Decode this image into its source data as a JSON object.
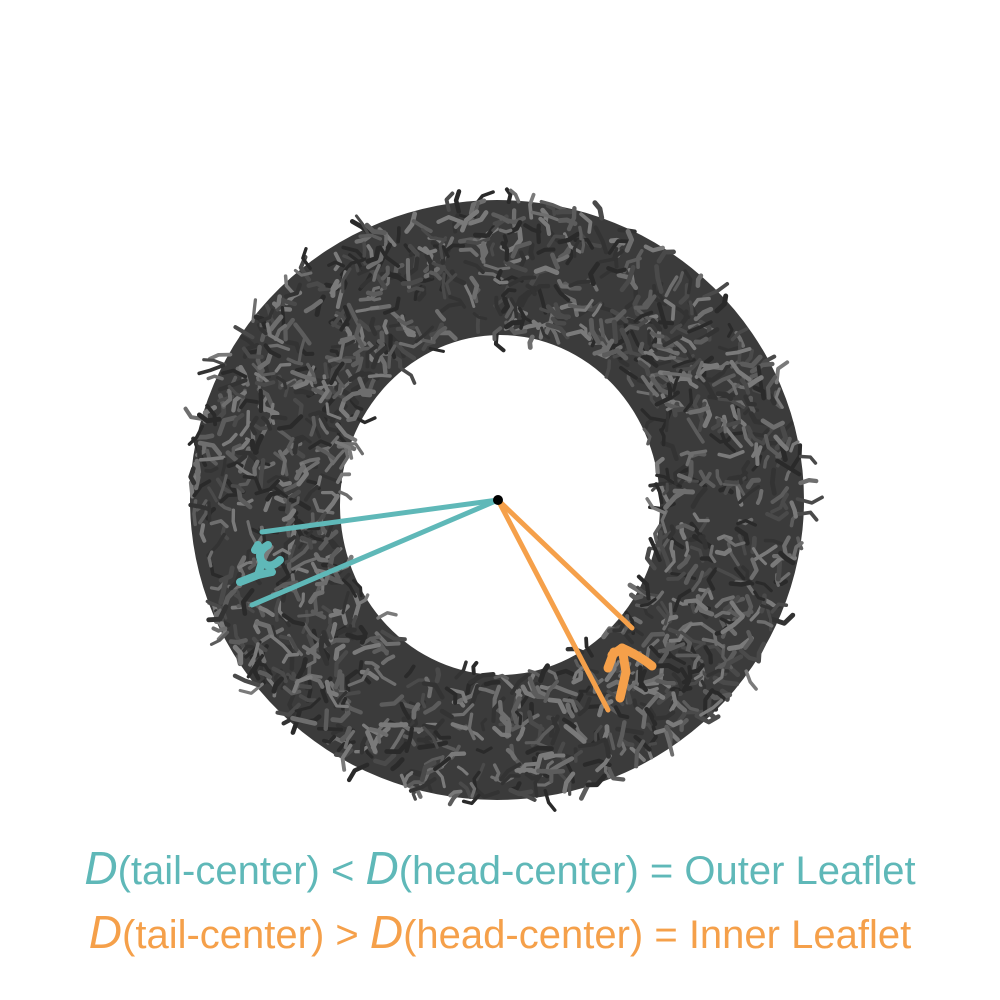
{
  "colors": {
    "outer": "#5fb8b8",
    "inner": "#f5a04a",
    "lipid_dark": "#3a3a3a",
    "lipid_light": "#6a6a6a",
    "center": "#000000",
    "background": "#ffffff"
  },
  "captions": {
    "outer": {
      "var1": "D",
      "part1": "(tail-center) < ",
      "var2": "D",
      "part2": "(head-center) = Outer Leaflet"
    },
    "inner": {
      "var1": "D",
      "part1": "(tail-center) > ",
      "var2": "D",
      "part2": "(head-center) = Inner Leaflet"
    }
  }
}
